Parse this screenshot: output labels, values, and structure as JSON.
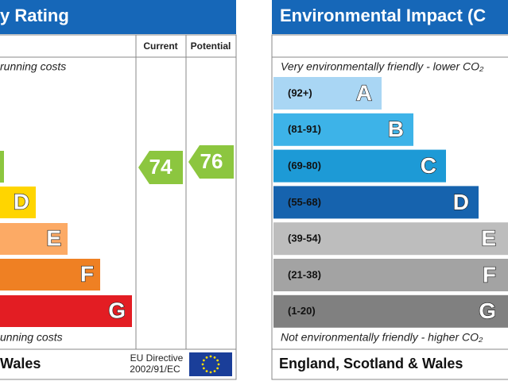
{
  "left_panel": {
    "title": "y Rating",
    "columns": [
      "Current",
      "Potential"
    ],
    "top_note": "running costs",
    "bands": [
      "D",
      "E",
      "F",
      "G"
    ],
    "bottom_note": "unning costs",
    "current": 74,
    "potential": 76,
    "footer": "Wales",
    "directive": [
      "EU Directive",
      "2002/91/EC"
    ]
  },
  "right_panel": {
    "title": "Environmental Impact (C",
    "top_note": "Very environmentally friendly - lower CO₂",
    "bands": [
      {
        "range": "(92+)",
        "letter": "A"
      },
      {
        "range": "(81-91)",
        "letter": "B"
      },
      {
        "range": "(69-80)",
        "letter": "C"
      },
      {
        "range": "(55-68)",
        "letter": "D"
      },
      {
        "range": "(39-54)",
        "letter": "E"
      },
      {
        "range": "(21-38)",
        "letter": "F"
      },
      {
        "range": "(1-20)",
        "letter": "G"
      }
    ],
    "bottom_note": "Not environmentally friendly - higher CO₂",
    "footer": "England, Scotland & Wales"
  }
}
